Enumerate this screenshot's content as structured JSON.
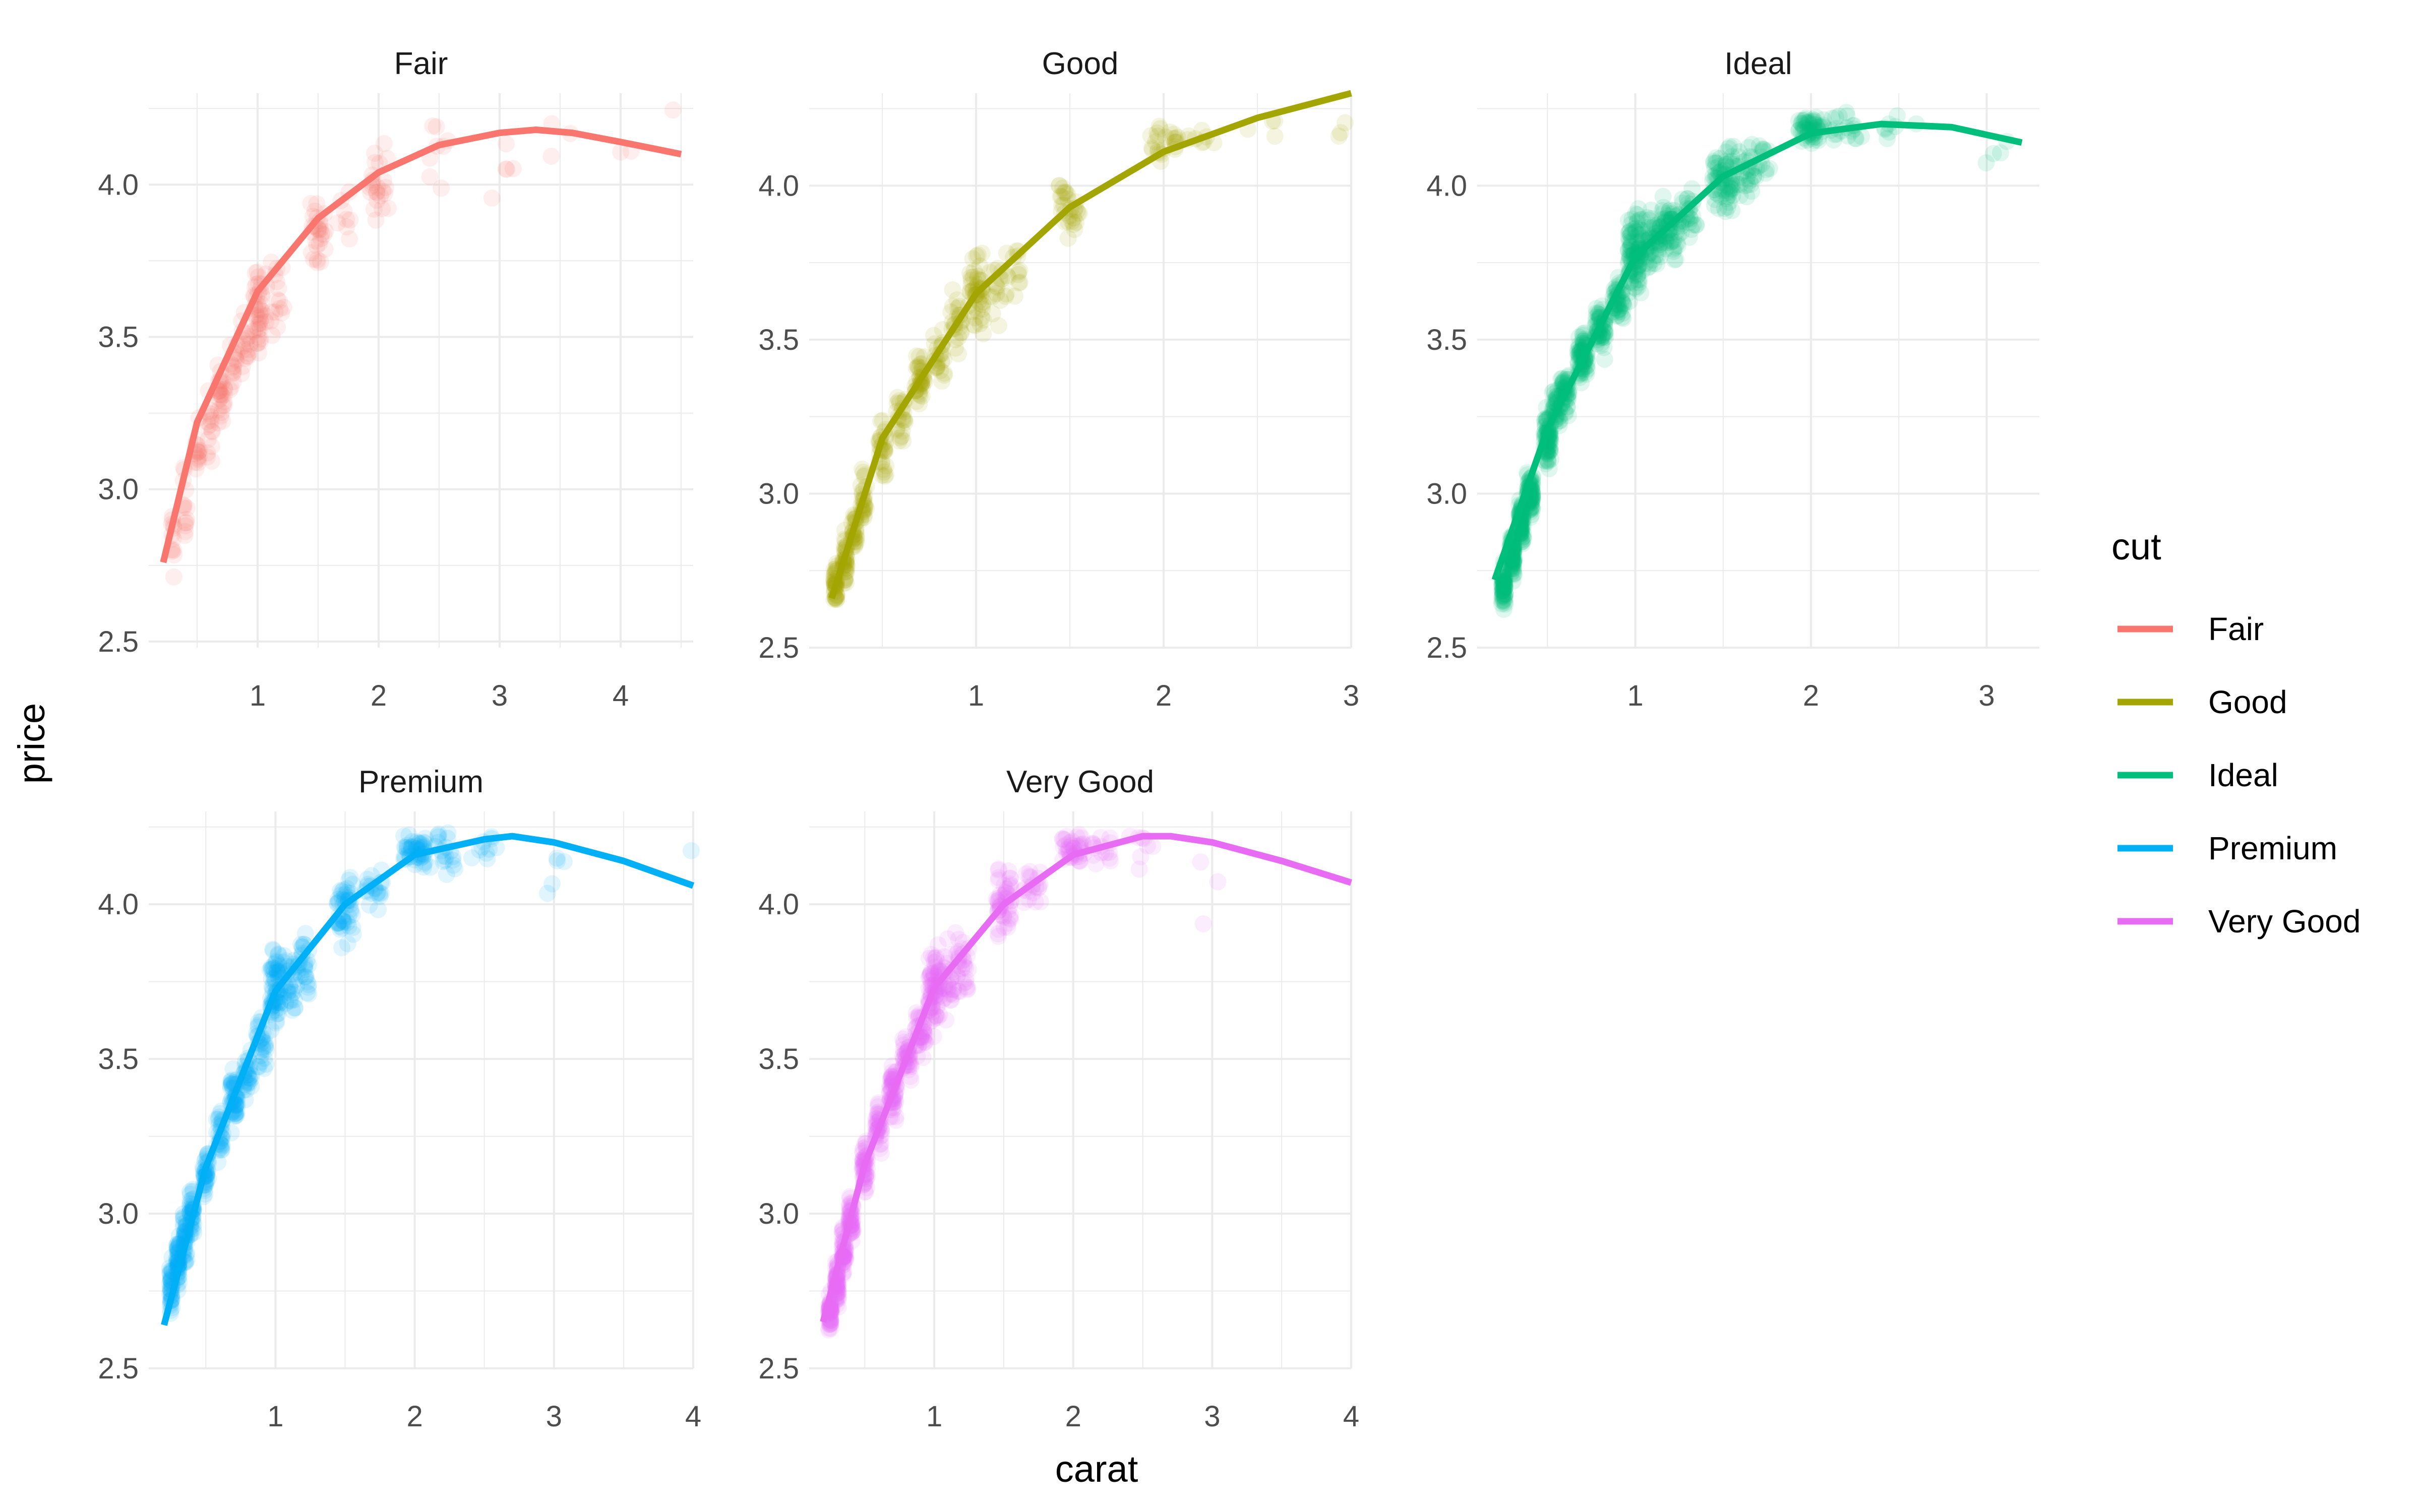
{
  "chart_data": {
    "type": "scatter",
    "xlabel": "carat",
    "ylabel": "price",
    "legend": {
      "title": "cut",
      "position": "right"
    },
    "grid": true,
    "panels": [
      {
        "title": "Fair",
        "color": "#F8766D",
        "xlim": [
          0.1,
          4.6
        ],
        "xticks": [
          "1",
          "2",
          "3",
          "4"
        ],
        "ylim": [
          2.48,
          4.3
        ],
        "clusters": [
          {
            "c": 0.3,
            "y": 2.83,
            "s": 0.15,
            "n": 12
          },
          {
            "c": 0.4,
            "y": 2.96,
            "s": 0.15,
            "n": 14
          },
          {
            "c": 0.5,
            "y": 3.1,
            "s": 0.12,
            "n": 16
          },
          {
            "c": 0.6,
            "y": 3.2,
            "s": 0.12,
            "n": 16
          },
          {
            "c": 0.7,
            "y": 3.32,
            "s": 0.1,
            "n": 28
          },
          {
            "c": 0.8,
            "y": 3.4,
            "s": 0.1,
            "n": 16
          },
          {
            "c": 0.9,
            "y": 3.48,
            "s": 0.1,
            "n": 18
          },
          {
            "c": 1.0,
            "y": 3.58,
            "s": 0.13,
            "n": 40
          },
          {
            "c": 1.1,
            "y": 3.6,
            "s": 0.12,
            "n": 10
          },
          {
            "c": 1.2,
            "y": 3.62,
            "s": 0.12,
            "n": 10
          },
          {
            "c": 1.5,
            "y": 3.85,
            "s": 0.13,
            "n": 28
          },
          {
            "c": 1.7,
            "y": 3.9,
            "s": 0.1,
            "n": 8
          },
          {
            "c": 2.0,
            "y": 4.02,
            "s": 0.14,
            "n": 24
          },
          {
            "c": 2.5,
            "y": 4.1,
            "s": 0.1,
            "n": 8
          },
          {
            "c": 3.0,
            "y": 4.05,
            "s": 0.1,
            "n": 5
          },
          {
            "c": 3.5,
            "y": 4.15,
            "s": 0.06,
            "n": 3
          },
          {
            "c": 4.0,
            "y": 4.15,
            "s": 0.05,
            "n": 2
          },
          {
            "c": 4.5,
            "y": 4.26,
            "s": 0.03,
            "n": 1
          }
        ],
        "x": [
          0.22,
          0.5,
          1.0,
          1.5,
          2.0,
          2.5,
          3.0,
          3.3,
          3.6,
          4.0,
          4.5
        ],
        "y": [
          2.76,
          3.22,
          3.65,
          3.89,
          4.04,
          4.13,
          4.17,
          4.18,
          4.17,
          4.14,
          4.1
        ]
      },
      {
        "title": "Good",
        "color": "#A3A500",
        "xlim": [
          0.11,
          3.0
        ],
        "xticks": [
          "1",
          "2",
          "3"
        ],
        "ylim": [
          2.5,
          4.3
        ],
        "clusters": [
          {
            "c": 0.25,
            "y": 2.7,
            "s": 0.07,
            "n": 40
          },
          {
            "c": 0.3,
            "y": 2.78,
            "s": 0.08,
            "n": 40
          },
          {
            "c": 0.35,
            "y": 2.87,
            "s": 0.08,
            "n": 30
          },
          {
            "c": 0.4,
            "y": 2.98,
            "s": 0.08,
            "n": 30
          },
          {
            "c": 0.5,
            "y": 3.15,
            "s": 0.09,
            "n": 30
          },
          {
            "c": 0.6,
            "y": 3.25,
            "s": 0.08,
            "n": 24
          },
          {
            "c": 0.7,
            "y": 3.37,
            "s": 0.07,
            "n": 40
          },
          {
            "c": 0.8,
            "y": 3.45,
            "s": 0.07,
            "n": 24
          },
          {
            "c": 0.9,
            "y": 3.55,
            "s": 0.08,
            "n": 24
          },
          {
            "c": 1.0,
            "y": 3.65,
            "s": 0.1,
            "n": 50
          },
          {
            "c": 1.1,
            "y": 3.68,
            "s": 0.1,
            "n": 15
          },
          {
            "c": 1.2,
            "y": 3.72,
            "s": 0.1,
            "n": 15
          },
          {
            "c": 1.5,
            "y": 3.92,
            "s": 0.1,
            "n": 30
          },
          {
            "c": 2.0,
            "y": 4.15,
            "s": 0.05,
            "n": 25
          },
          {
            "c": 2.2,
            "y": 4.15,
            "s": 0.05,
            "n": 8
          },
          {
            "c": 2.5,
            "y": 4.2,
            "s": 0.05,
            "n": 4
          },
          {
            "c": 3.0,
            "y": 4.18,
            "s": 0.05,
            "n": 3
          }
        ],
        "x": [
          0.23,
          0.5,
          1.0,
          1.5,
          2.0,
          2.5,
          3.0
        ],
        "y": [
          2.66,
          3.18,
          3.65,
          3.93,
          4.11,
          4.22,
          4.3
        ]
      },
      {
        "title": "Ideal",
        "color": "#00BF7D",
        "xlim": [
          0.1,
          3.3
        ],
        "xticks": [
          "1",
          "2",
          "3"
        ],
        "ylim": [
          2.5,
          4.3
        ],
        "clusters": [
          {
            "c": 0.25,
            "y": 2.7,
            "s": 0.06,
            "n": 70
          },
          {
            "c": 0.3,
            "y": 2.8,
            "s": 0.07,
            "n": 90
          },
          {
            "c": 0.35,
            "y": 2.9,
            "s": 0.07,
            "n": 80
          },
          {
            "c": 0.4,
            "y": 3.0,
            "s": 0.07,
            "n": 80
          },
          {
            "c": 0.5,
            "y": 3.18,
            "s": 0.08,
            "n": 80
          },
          {
            "c": 0.55,
            "y": 3.28,
            "s": 0.07,
            "n": 40
          },
          {
            "c": 0.6,
            "y": 3.33,
            "s": 0.07,
            "n": 50
          },
          {
            "c": 0.7,
            "y": 3.45,
            "s": 0.07,
            "n": 80
          },
          {
            "c": 0.8,
            "y": 3.53,
            "s": 0.07,
            "n": 60
          },
          {
            "c": 0.9,
            "y": 3.62,
            "s": 0.07,
            "n": 50
          },
          {
            "c": 1.0,
            "y": 3.78,
            "s": 0.11,
            "n": 110
          },
          {
            "c": 1.1,
            "y": 3.82,
            "s": 0.1,
            "n": 60
          },
          {
            "c": 1.2,
            "y": 3.86,
            "s": 0.1,
            "n": 60
          },
          {
            "c": 1.3,
            "y": 3.9,
            "s": 0.08,
            "n": 30
          },
          {
            "c": 1.5,
            "y": 4.02,
            "s": 0.09,
            "n": 70
          },
          {
            "c": 1.6,
            "y": 4.05,
            "s": 0.08,
            "n": 30
          },
          {
            "c": 1.7,
            "y": 4.08,
            "s": 0.07,
            "n": 20
          },
          {
            "c": 2.0,
            "y": 4.19,
            "s": 0.05,
            "n": 60
          },
          {
            "c": 2.2,
            "y": 4.18,
            "s": 0.05,
            "n": 20
          },
          {
            "c": 2.5,
            "y": 4.18,
            "s": 0.05,
            "n": 8
          },
          {
            "c": 3.0,
            "y": 4.12,
            "s": 0.05,
            "n": 3
          },
          {
            "c": 3.2,
            "y": 4.1,
            "s": 0.02,
            "n": 1
          }
        ],
        "x": [
          0.2,
          0.5,
          1.0,
          1.5,
          2.0,
          2.4,
          2.8,
          3.2
        ],
        "y": [
          2.72,
          3.21,
          3.77,
          4.03,
          4.17,
          4.2,
          4.19,
          4.14
        ]
      },
      {
        "title": "Premium",
        "color": "#00B0F6",
        "xlim": [
          0.09,
          4.0
        ],
        "xticks": [
          "1",
          "2",
          "3",
          "4"
        ],
        "ylim": [
          2.5,
          4.3
        ],
        "clusters": [
          {
            "c": 0.25,
            "y": 2.75,
            "s": 0.08,
            "n": 40
          },
          {
            "c": 0.3,
            "y": 2.85,
            "s": 0.08,
            "n": 50
          },
          {
            "c": 0.35,
            "y": 2.92,
            "s": 0.07,
            "n": 40
          },
          {
            "c": 0.4,
            "y": 3.0,
            "s": 0.08,
            "n": 40
          },
          {
            "c": 0.5,
            "y": 3.12,
            "s": 0.08,
            "n": 40
          },
          {
            "c": 0.6,
            "y": 3.25,
            "s": 0.08,
            "n": 30
          },
          {
            "c": 0.7,
            "y": 3.37,
            "s": 0.08,
            "n": 50
          },
          {
            "c": 0.8,
            "y": 3.45,
            "s": 0.07,
            "n": 30
          },
          {
            "c": 0.9,
            "y": 3.55,
            "s": 0.08,
            "n": 30
          },
          {
            "c": 1.0,
            "y": 3.72,
            "s": 0.12,
            "n": 70
          },
          {
            "c": 1.1,
            "y": 3.75,
            "s": 0.1,
            "n": 30
          },
          {
            "c": 1.2,
            "y": 3.8,
            "s": 0.1,
            "n": 30
          },
          {
            "c": 1.5,
            "y": 3.98,
            "s": 0.1,
            "n": 50
          },
          {
            "c": 1.7,
            "y": 4.05,
            "s": 0.08,
            "n": 20
          },
          {
            "c": 2.0,
            "y": 4.18,
            "s": 0.05,
            "n": 50
          },
          {
            "c": 2.2,
            "y": 4.17,
            "s": 0.06,
            "n": 20
          },
          {
            "c": 2.5,
            "y": 4.18,
            "s": 0.05,
            "n": 10
          },
          {
            "c": 3.0,
            "y": 4.1,
            "s": 0.08,
            "n": 5
          },
          {
            "c": 4.0,
            "y": 4.17,
            "s": 0.02,
            "n": 1
          }
        ],
        "x": [
          0.2,
          0.5,
          1.0,
          1.5,
          2.0,
          2.5,
          2.7,
          3.0,
          3.5,
          4.0
        ],
        "y": [
          2.64,
          3.15,
          3.72,
          4.0,
          4.16,
          4.21,
          4.22,
          4.2,
          4.14,
          4.06
        ]
      },
      {
        "title": "Very Good",
        "color": "#E76BF3",
        "xlim": [
          0.1,
          4.0
        ],
        "xticks": [
          "1",
          "2",
          "3",
          "4"
        ],
        "ylim": [
          2.5,
          4.3
        ],
        "clusters": [
          {
            "c": 0.25,
            "y": 2.68,
            "s": 0.06,
            "n": 50
          },
          {
            "c": 0.3,
            "y": 2.78,
            "s": 0.07,
            "n": 60
          },
          {
            "c": 0.35,
            "y": 2.88,
            "s": 0.07,
            "n": 50
          },
          {
            "c": 0.4,
            "y": 2.98,
            "s": 0.07,
            "n": 50
          },
          {
            "c": 0.5,
            "y": 3.15,
            "s": 0.08,
            "n": 50
          },
          {
            "c": 0.6,
            "y": 3.28,
            "s": 0.07,
            "n": 40
          },
          {
            "c": 0.7,
            "y": 3.4,
            "s": 0.08,
            "n": 60
          },
          {
            "c": 0.8,
            "y": 3.5,
            "s": 0.07,
            "n": 40
          },
          {
            "c": 0.9,
            "y": 3.58,
            "s": 0.08,
            "n": 40
          },
          {
            "c": 1.0,
            "y": 3.72,
            "s": 0.12,
            "n": 80
          },
          {
            "c": 1.1,
            "y": 3.76,
            "s": 0.1,
            "n": 30
          },
          {
            "c": 1.2,
            "y": 3.8,
            "s": 0.1,
            "n": 30
          },
          {
            "c": 1.5,
            "y": 4.0,
            "s": 0.1,
            "n": 50
          },
          {
            "c": 1.7,
            "y": 4.05,
            "s": 0.08,
            "n": 20
          },
          {
            "c": 2.0,
            "y": 4.18,
            "s": 0.05,
            "n": 40
          },
          {
            "c": 2.2,
            "y": 4.18,
            "s": 0.05,
            "n": 15
          },
          {
            "c": 2.5,
            "y": 4.18,
            "s": 0.05,
            "n": 8
          },
          {
            "c": 3.0,
            "y": 4.05,
            "s": 0.1,
            "n": 3
          },
          {
            "c": 4.0,
            "y": 4.2,
            "s": 0.02,
            "n": 1
          }
        ],
        "x": [
          0.2,
          0.5,
          1.0,
          1.5,
          2.0,
          2.5,
          2.7,
          3.0,
          3.5,
          4.0
        ],
        "y": [
          2.65,
          3.16,
          3.73,
          4.0,
          4.16,
          4.22,
          4.22,
          4.2,
          4.14,
          4.07
        ]
      }
    ],
    "yticks": [
      "2.5",
      "3.0",
      "3.5",
      "4.0"
    ]
  }
}
